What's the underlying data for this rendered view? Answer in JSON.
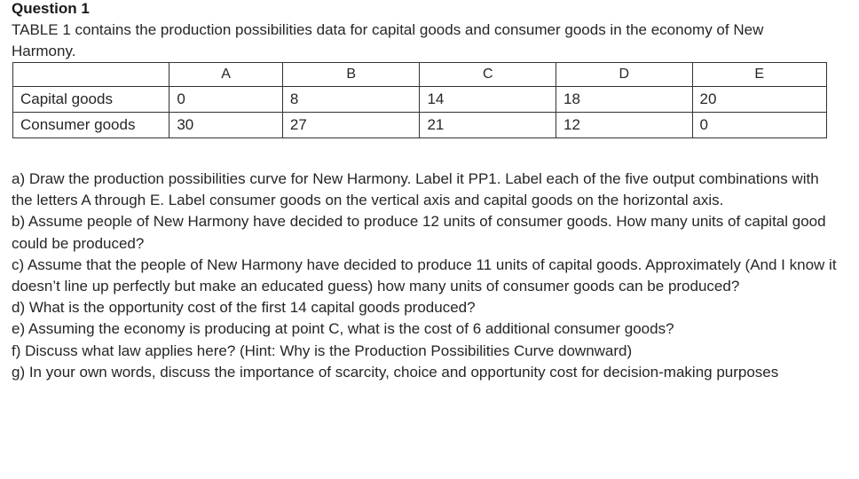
{
  "heading": "Question 1",
  "intro": "TABLE 1 contains the production possibilities data for capital goods and consumer goods in the economy of New Harmony.",
  "table": {
    "columns": [
      "",
      "A",
      "B",
      "C",
      "D",
      "E"
    ],
    "rows": [
      [
        "Capital goods",
        "0",
        "8",
        "14",
        "18",
        "20"
      ],
      [
        "Consumer goods",
        "30",
        "27",
        "21",
        "12",
        "0"
      ]
    ]
  },
  "questions": [
    "a) Draw the production possibilities curve for New Harmony. Label it PP1. Label each of the five output combinations with the letters A through E. Label consumer goods on the vertical axis and capital goods on the horizontal axis.",
    "b) Assume people of New Harmony have decided to produce 12 units of consumer goods. How many units of capital good could be produced?",
    "c) Assume that the people of New Harmony have decided to produce 11 units of capital goods. Approximately (And I know it doesn’t line up perfectly but make an educated guess) how many units of consumer goods can be produced?",
    "d) What is the opportunity cost of the first 14 capital goods produced?",
    "e) Assuming the economy is producing at point C, what is the cost of 6 additional consumer goods?",
    "f) Discuss what law applies here? (Hint: Why is the Production Possibilities Curve downward)",
    "g) In your own words, discuss the importance of scarcity, choice and opportunity cost for decision-making purposes"
  ]
}
